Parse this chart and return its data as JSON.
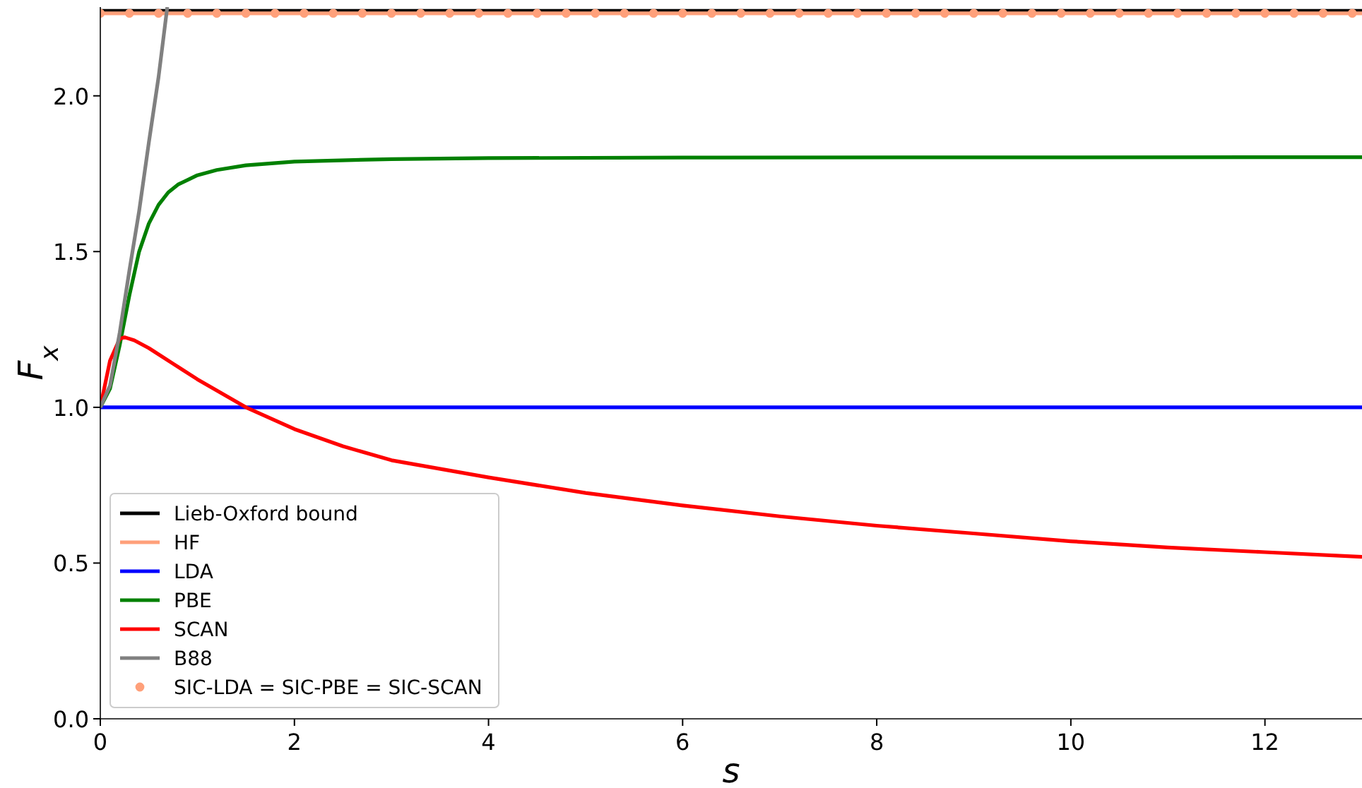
{
  "chart_data": {
    "type": "line",
    "xlabel": "s",
    "ylabel": "F$_{x}$",
    "xlim": [
      0,
      13
    ],
    "ylim": [
      0,
      2.285
    ],
    "xticks": [
      0,
      2,
      4,
      6,
      8,
      10,
      12
    ],
    "yticks": [
      {
        "value": 0,
        "label": "0.0"
      },
      {
        "value": 0.5,
        "label": "0.5"
      },
      {
        "value": 1,
        "label": "1.0"
      },
      {
        "value": 1.5,
        "label": "1.5"
      },
      {
        "value": 2,
        "label": "2.0"
      }
    ],
    "grid": false,
    "legend": "bottom left",
    "marker": "none",
    "line_style": "solid",
    "series": [
      {
        "name": "Lieb-Oxford bound",
        "color": "#000000",
        "x": [
          0,
          13
        ],
        "values": [
          2.273,
          2.273
        ]
      },
      {
        "name": "HF",
        "color": "#ffa07a",
        "x": [
          0,
          13
        ],
        "values": [
          2.265,
          2.265
        ]
      },
      {
        "name": "LDA",
        "color": "#0000ff",
        "x": [
          0,
          13
        ],
        "values": [
          1,
          1
        ]
      },
      {
        "name": "PBE",
        "color": "#008000",
        "x": [
          0,
          0.1,
          0.2,
          0.3,
          0.4,
          0.5,
          0.6,
          0.7,
          0.8,
          1,
          1.2,
          1.5,
          2,
          3,
          4,
          6,
          13
        ],
        "values": [
          1,
          1.06,
          1.2,
          1.36,
          1.5,
          1.59,
          1.65,
          1.69,
          1.715,
          1.745,
          1.762,
          1.777,
          1.789,
          1.797,
          1.8,
          1.802,
          1.803
        ]
      },
      {
        "name": "SCAN",
        "color": "#ff0000",
        "x": [
          0,
          0.1,
          0.2,
          0.25,
          0.35,
          0.5,
          0.75,
          1,
          1.25,
          1.5,
          2,
          2.5,
          3,
          4,
          5,
          6,
          7,
          8,
          9,
          10,
          11,
          12,
          13
        ],
        "values": [
          1,
          1.15,
          1.22,
          1.225,
          1.215,
          1.19,
          1.14,
          1.09,
          1.045,
          1,
          0.93,
          0.875,
          0.83,
          0.775,
          0.725,
          0.685,
          0.65,
          0.62,
          0.595,
          0.57,
          0.55,
          0.535,
          0.52
        ]
      },
      {
        "name": "B88",
        "color": "#808080",
        "x": [
          0,
          0.1,
          0.2,
          0.3,
          0.4,
          0.5,
          0.6,
          0.69
        ],
        "values": [
          1,
          1.07,
          1.24,
          1.44,
          1.63,
          1.85,
          2.06,
          2.285
        ]
      },
      {
        "name": "SIC-LDA = SIC-PBE = SIC-SCAN",
        "type": "scatter",
        "marker": "circle",
        "color": "#ffa07a",
        "x": [
          0,
          0.3,
          0.6,
          0.9,
          1.2,
          1.5,
          1.8,
          2.1,
          2.4,
          2.7,
          3,
          3.3,
          3.6,
          3.9,
          4.2,
          4.5,
          4.8,
          5.1,
          5.4,
          5.7,
          6,
          6.3,
          6.6,
          6.9,
          7.2,
          7.5,
          7.8,
          8.1,
          8.4,
          8.7,
          9,
          9.3,
          9.6,
          9.9,
          10.2,
          10.5,
          10.8,
          11.1,
          11.4,
          11.7,
          12,
          12.3,
          12.6,
          12.9
        ],
        "values": [
          2.265,
          2.265,
          2.265,
          2.265,
          2.265,
          2.265,
          2.265,
          2.265,
          2.265,
          2.265,
          2.265,
          2.265,
          2.265,
          2.265,
          2.265,
          2.265,
          2.265,
          2.265,
          2.265,
          2.265,
          2.265,
          2.265,
          2.265,
          2.265,
          2.265,
          2.265,
          2.265,
          2.265,
          2.265,
          2.265,
          2.265,
          2.265,
          2.265,
          2.265,
          2.265,
          2.265,
          2.265,
          2.265,
          2.265,
          2.265,
          2.265,
          2.265,
          2.265,
          2.265
        ]
      }
    ]
  }
}
